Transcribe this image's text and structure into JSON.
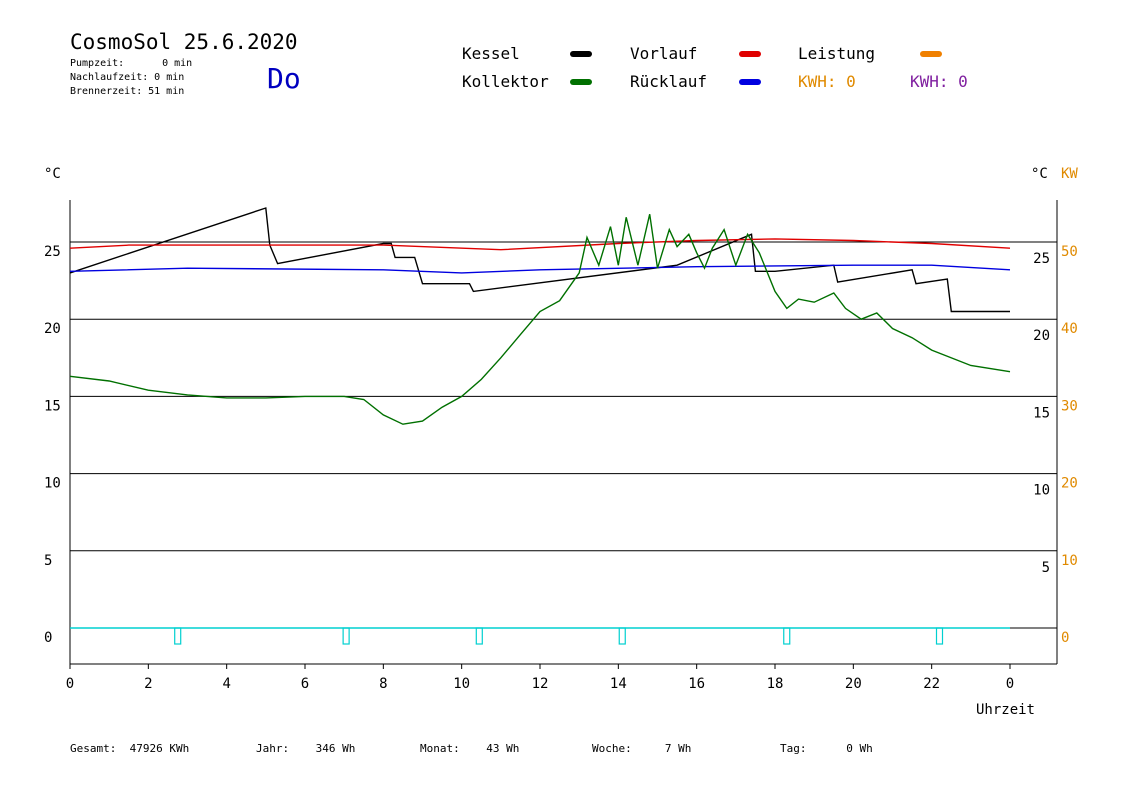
{
  "header": {
    "title": "CosmoSol 25.6.2020",
    "day": "Do",
    "stats": [
      {
        "label": "Pumpzeit:",
        "value": "0 min"
      },
      {
        "label": "Nachlaufzeit:",
        "value": "0 min"
      },
      {
        "label": "Brennerzeit:",
        "value": "51 min"
      }
    ]
  },
  "legend": {
    "kessel": {
      "label": "Kessel",
      "color": "#000000"
    },
    "vorlauf": {
      "label": "Vorlauf",
      "color": "#e00000"
    },
    "leistung": {
      "label": "Leistung",
      "color": "#f08000"
    },
    "kollektor": {
      "label": "Kollektor",
      "color": "#007000"
    },
    "ruecklauf": {
      "label": "Rücklauf",
      "color": "#0000e0"
    },
    "kwh1": "KWH: 0",
    "kwh2": "KWH: 0",
    "kwh1_color": "#e08a00",
    "kwh2_color": "#8020a0"
  },
  "footer": {
    "gesamt_label": "Gesamt:",
    "gesamt_value": "47926 KWh",
    "jahr_label": "Jahr:",
    "jahr_value": "346 Wh",
    "monat_label": "Monat:",
    "monat_value": "43 Wh",
    "woche_label": "Woche:",
    "woche_value": "7 Wh",
    "tag_label": "Tag:",
    "tag_value": "0 Wh"
  },
  "chart_data": {
    "type": "line",
    "ylabel_left": "°C",
    "ylabel_right": "°C",
    "ylabel_right2": "KW",
    "xlabel": "Uhrzeit",
    "xlim": [
      0,
      24
    ],
    "ylim": [
      -2,
      27
    ],
    "grid": true,
    "x_ticks": [
      "0",
      "2",
      "4",
      "6",
      "8",
      "10",
      "12",
      "14",
      "16",
      "18",
      "20",
      "22",
      "0"
    ],
    "y_ticks_left": [
      "0",
      "5",
      "10",
      "15",
      "20",
      "25"
    ],
    "y_ticks_right": [
      "5",
      "10",
      "15",
      "20",
      "25"
    ],
    "y_ticks_kw": [
      "0",
      "10",
      "20",
      "30",
      "40",
      "50"
    ],
    "hlines": [
      0,
      5,
      10,
      15,
      20,
      25
    ],
    "series": [
      {
        "name": "Kessel",
        "color": "#000000",
        "points": [
          [
            0,
            23
          ],
          [
            5,
            27.2
          ],
          [
            5.1,
            24.8
          ],
          [
            5.3,
            23.6
          ],
          [
            8,
            24.9
          ],
          [
            8.2,
            24.9
          ],
          [
            8.3,
            24
          ],
          [
            8.8,
            24
          ],
          [
            9,
            22.3
          ],
          [
            10.2,
            22.3
          ],
          [
            10.3,
            21.8
          ],
          [
            15.5,
            23.5
          ],
          [
            17.4,
            25.5
          ],
          [
            17.5,
            23.1
          ],
          [
            18,
            23.1
          ],
          [
            19.5,
            23.5
          ],
          [
            19.6,
            22.4
          ],
          [
            21.5,
            23.2
          ],
          [
            21.6,
            22.3
          ],
          [
            22.4,
            22.6
          ],
          [
            22.5,
            20.5
          ],
          [
            24,
            20.5
          ]
        ]
      },
      {
        "name": "Vorlauf",
        "color": "#e00000",
        "points": [
          [
            0,
            24.6
          ],
          [
            1.5,
            24.8
          ],
          [
            8,
            24.8
          ],
          [
            11,
            24.5
          ],
          [
            14,
            24.9
          ],
          [
            16,
            25.1
          ],
          [
            18,
            25.2
          ],
          [
            20,
            25.1
          ],
          [
            22,
            24.9
          ],
          [
            24,
            24.6
          ]
        ]
      },
      {
        "name": "Rücklauf",
        "color": "#0000e0",
        "points": [
          [
            0,
            23.1
          ],
          [
            3,
            23.3
          ],
          [
            8,
            23.2
          ],
          [
            10,
            23
          ],
          [
            12,
            23.2
          ],
          [
            16,
            23.4
          ],
          [
            20,
            23.5
          ],
          [
            22,
            23.5
          ],
          [
            24,
            23.2
          ]
        ]
      },
      {
        "name": "Kollektor",
        "color": "#007000",
        "points": [
          [
            0,
            16.3
          ],
          [
            1,
            16
          ],
          [
            2,
            15.4
          ],
          [
            3,
            15.1
          ],
          [
            4,
            14.9
          ],
          [
            5,
            14.9
          ],
          [
            6,
            15
          ],
          [
            7,
            15
          ],
          [
            7.5,
            14.8
          ],
          [
            8,
            13.8
          ],
          [
            8.5,
            13.2
          ],
          [
            9,
            13.4
          ],
          [
            9.5,
            14.3
          ],
          [
            10,
            15
          ],
          [
            10.5,
            16.1
          ],
          [
            11,
            17.5
          ],
          [
            11.5,
            19
          ],
          [
            12,
            20.5
          ],
          [
            12.5,
            21.2
          ],
          [
            13,
            23
          ],
          [
            13.2,
            25.3
          ],
          [
            13.5,
            23.5
          ],
          [
            13.8,
            26
          ],
          [
            14,
            23.5
          ],
          [
            14.2,
            26.6
          ],
          [
            14.5,
            23.5
          ],
          [
            14.8,
            26.8
          ],
          [
            15,
            23.3
          ],
          [
            15.3,
            25.8
          ],
          [
            15.5,
            24.7
          ],
          [
            15.8,
            25.5
          ],
          [
            16,
            24.3
          ],
          [
            16.2,
            23.3
          ],
          [
            16.4,
            24.6
          ],
          [
            16.7,
            25.8
          ],
          [
            17,
            23.5
          ],
          [
            17.3,
            25.5
          ],
          [
            17.6,
            24.3
          ],
          [
            18,
            21.8
          ],
          [
            18.3,
            20.7
          ],
          [
            18.6,
            21.3
          ],
          [
            19,
            21.1
          ],
          [
            19.5,
            21.7
          ],
          [
            19.8,
            20.7
          ],
          [
            20.2,
            20
          ],
          [
            20.6,
            20.4
          ],
          [
            21,
            19.4
          ],
          [
            21.5,
            18.8
          ],
          [
            22,
            18
          ],
          [
            23,
            17
          ],
          [
            24,
            16.6
          ]
        ]
      }
    ],
    "pump_markers": [
      2.75,
      7.05,
      10.45,
      14.1,
      18.3,
      22.2
    ]
  }
}
